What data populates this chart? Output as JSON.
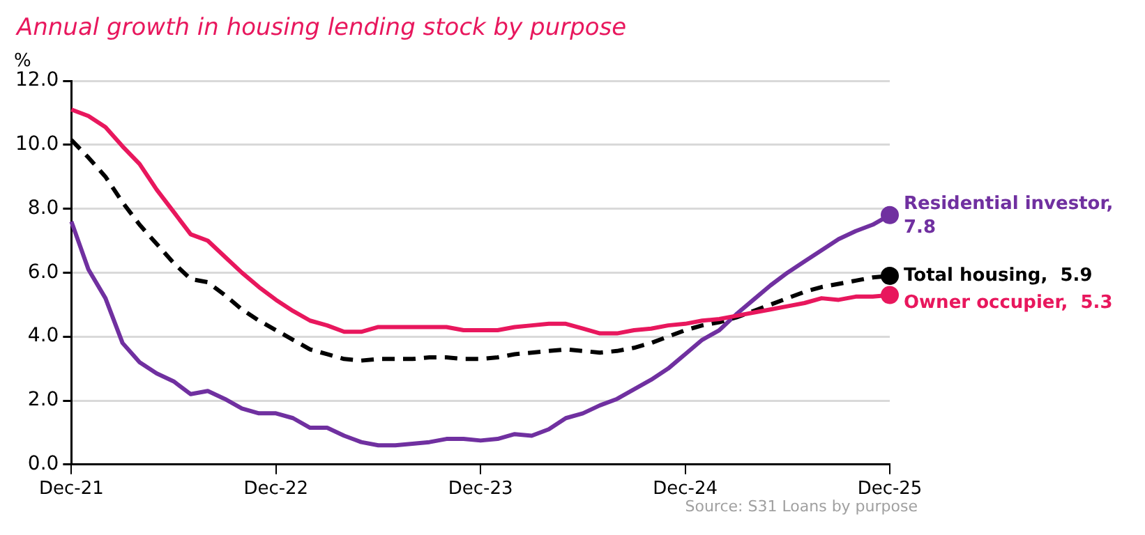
{
  "chart_data": {
    "type": "line",
    "title": "Annual growth in housing lending stock by purpose",
    "ylabel": "%",
    "annotations": [
      "Source: S31 Loans by purpose"
    ],
    "categories": [
      "Dec-21",
      null,
      null,
      null,
      null,
      null,
      null,
      null,
      null,
      null,
      null,
      null,
      "Dec-22",
      null,
      null,
      null,
      null,
      null,
      null,
      null,
      null,
      null,
      null,
      null,
      "Dec-23",
      null,
      null,
      null,
      null,
      null,
      null,
      null,
      null,
      null,
      null,
      null,
      "Dec-24",
      null,
      null,
      null,
      null,
      null,
      null,
      null,
      null,
      null,
      null,
      null,
      "Dec-25"
    ],
    "ylim": [
      0,
      12
    ],
    "yticks": [
      {
        "value": 0,
        "label": "0.0"
      },
      {
        "value": 2,
        "label": "2.0"
      },
      {
        "value": 4,
        "label": "4.0"
      },
      {
        "value": 6,
        "label": "6.0"
      },
      {
        "value": 8,
        "label": "8.0"
      },
      {
        "value": 10,
        "label": "10.0"
      },
      {
        "value": 12,
        "label": "12.0"
      }
    ],
    "grid": "y",
    "legend": false,
    "series": [
      {
        "name": "Owner occupier,",
        "color": "#e8175d",
        "line_style": "solid",
        "values": [
          11.1,
          10.9,
          10.55,
          9.95,
          9.4,
          8.6,
          7.9,
          7.2,
          7.0,
          6.5,
          6.0,
          5.55,
          5.15,
          4.8,
          4.5,
          4.35,
          4.15,
          4.15,
          4.3,
          4.3,
          4.3,
          4.3,
          4.3,
          4.2,
          4.2,
          4.2,
          4.3,
          4.35,
          4.4,
          4.4,
          4.25,
          4.1,
          4.1,
          4.2,
          4.25,
          4.35,
          4.4,
          4.5,
          4.55,
          4.65,
          4.75,
          4.85,
          4.95,
          5.05,
          5.2,
          5.15,
          5.25,
          5.25,
          5.3
        ],
        "value_labels": [
          null,
          null,
          null,
          null,
          null,
          null,
          null,
          null,
          null,
          null,
          null,
          null,
          null,
          null,
          null,
          null,
          null,
          null,
          null,
          null,
          null,
          null,
          null,
          null,
          null,
          null,
          null,
          null,
          null,
          null,
          null,
          null,
          null,
          null,
          null,
          null,
          null,
          null,
          null,
          null,
          null,
          null,
          null,
          null,
          null,
          null,
          null,
          null,
          "5.3"
        ]
      },
      {
        "name": "Total housing,",
        "color": "#000000",
        "line_style": "dashed",
        "values": [
          10.15,
          9.6,
          9.0,
          8.2,
          7.5,
          6.9,
          6.3,
          5.8,
          5.7,
          5.3,
          4.85,
          4.5,
          4.2,
          3.9,
          3.6,
          3.45,
          3.3,
          3.25,
          3.3,
          3.3,
          3.3,
          3.35,
          3.35,
          3.3,
          3.3,
          3.35,
          3.45,
          3.5,
          3.55,
          3.6,
          3.55,
          3.5,
          3.55,
          3.65,
          3.8,
          4.0,
          4.2,
          4.35,
          4.45,
          4.6,
          4.8,
          5.0,
          5.2,
          5.4,
          5.55,
          5.65,
          5.75,
          5.85,
          5.9
        ],
        "value_labels": [
          null,
          null,
          null,
          null,
          null,
          null,
          null,
          null,
          null,
          null,
          null,
          null,
          null,
          null,
          null,
          null,
          null,
          null,
          null,
          null,
          null,
          null,
          null,
          null,
          null,
          null,
          null,
          null,
          null,
          null,
          null,
          null,
          null,
          null,
          null,
          null,
          null,
          null,
          null,
          null,
          null,
          null,
          null,
          null,
          null,
          null,
          null,
          null,
          "5.9"
        ]
      },
      {
        "name": "Residential investor,",
        "color": "#7030a0",
        "line_style": "solid",
        "values": [
          7.6,
          6.1,
          5.2,
          3.8,
          3.2,
          2.85,
          2.6,
          2.2,
          2.3,
          2.05,
          1.75,
          1.6,
          1.6,
          1.45,
          1.15,
          1.15,
          0.9,
          0.7,
          0.6,
          0.6,
          0.65,
          0.7,
          0.8,
          0.8,
          0.75,
          0.8,
          0.95,
          0.9,
          1.1,
          1.45,
          1.6,
          1.85,
          2.05,
          2.35,
          2.65,
          3.0,
          3.45,
          3.9,
          4.2,
          4.7,
          5.15,
          5.6,
          6.0,
          6.35,
          6.7,
          7.05,
          7.3,
          7.5,
          7.8
        ],
        "value_labels": [
          null,
          null,
          null,
          null,
          null,
          null,
          null,
          null,
          null,
          null,
          null,
          null,
          null,
          null,
          null,
          null,
          null,
          null,
          null,
          null,
          null,
          null,
          null,
          null,
          null,
          null,
          null,
          null,
          null,
          null,
          null,
          null,
          null,
          null,
          null,
          null,
          null,
          null,
          null,
          null,
          null,
          null,
          null,
          null,
          null,
          null,
          null,
          null,
          "7.8"
        ]
      }
    ]
  }
}
